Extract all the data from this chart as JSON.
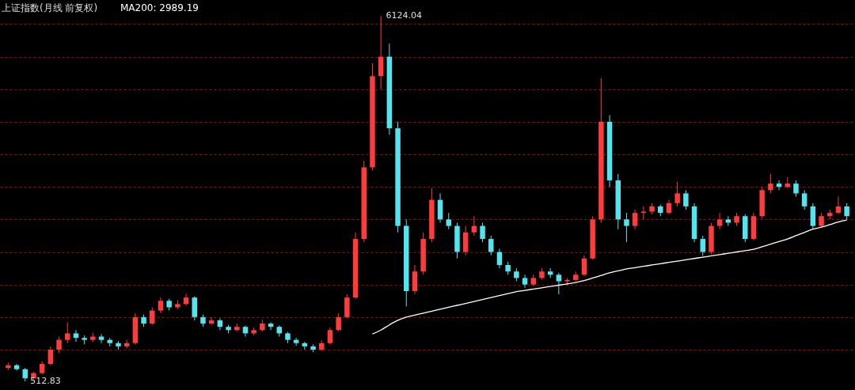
{
  "chart_data": {
    "type": "candlestick",
    "title": "上证指数(月线 前复权)",
    "categories": [
      null,
      null,
      null,
      null,
      null,
      null,
      null,
      null,
      null,
      null,
      null,
      null,
      null,
      null,
      null,
      null,
      null,
      null,
      null,
      null,
      null,
      null,
      null,
      null,
      null,
      null,
      null,
      null,
      null,
      null,
      null,
      null,
      null,
      null,
      null,
      null,
      null,
      null,
      null,
      null,
      null,
      null,
      null,
      null,
      null,
      null,
      null,
      null,
      null,
      null,
      null,
      null,
      null,
      null,
      null,
      null,
      null,
      null,
      null,
      null,
      null,
      null,
      null,
      null,
      null,
      null,
      null,
      null,
      null,
      null,
      null,
      null,
      null,
      null,
      null,
      null,
      null,
      null,
      null,
      null,
      null,
      null,
      null,
      null,
      null,
      null,
      null,
      null,
      null,
      null,
      null,
      null,
      null,
      null,
      null,
      null,
      null,
      null,
      null,
      null
    ],
    "ohlc": [
      [
        720,
        800,
        690,
        760
      ],
      [
        760,
        780,
        680,
        700
      ],
      [
        700,
        720,
        512.83,
        560
      ],
      [
        560,
        660,
        540,
        640
      ],
      [
        640,
        820,
        620,
        780
      ],
      [
        780,
        1050,
        760,
        1000
      ],
      [
        1000,
        1200,
        950,
        1150
      ],
      [
        1150,
        1420,
        1100,
        1250
      ],
      [
        1250,
        1300,
        1120,
        1180
      ],
      [
        1180,
        1220,
        1080,
        1150
      ],
      [
        1150,
        1260,
        1120,
        1200
      ],
      [
        1200,
        1240,
        1100,
        1150
      ],
      [
        1150,
        1180,
        1050,
        1100
      ],
      [
        1100,
        1130,
        1000,
        1050
      ],
      [
        1050,
        1150,
        1020,
        1100
      ],
      [
        1100,
        1560,
        1080,
        1500
      ],
      [
        1500,
        1540,
        1350,
        1400
      ],
      [
        1400,
        1650,
        1380,
        1600
      ],
      [
        1600,
        1800,
        1560,
        1750
      ],
      [
        1750,
        1780,
        1600,
        1650
      ],
      [
        1650,
        1760,
        1620,
        1700
      ],
      [
        1700,
        1860,
        1680,
        1800
      ],
      [
        1800,
        1820,
        1450,
        1500
      ],
      [
        1500,
        1540,
        1350,
        1400
      ],
      [
        1400,
        1500,
        1380,
        1450
      ],
      [
        1450,
        1480,
        1300,
        1350
      ],
      [
        1350,
        1380,
        1250,
        1300
      ],
      [
        1300,
        1400,
        1280,
        1350
      ],
      [
        1350,
        1370,
        1200,
        1250
      ],
      [
        1250,
        1340,
        1220,
        1300
      ],
      [
        1300,
        1460,
        1280,
        1400
      ],
      [
        1400,
        1420,
        1300,
        1350
      ],
      [
        1350,
        1370,
        1200,
        1250
      ],
      [
        1250,
        1270,
        1100,
        1150
      ],
      [
        1150,
        1180,
        1060,
        1100
      ],
      [
        1100,
        1120,
        1000,
        1050
      ],
      [
        1050,
        1080,
        960,
        1000
      ],
      [
        1000,
        1140,
        980,
        1100
      ],
      [
        1100,
        1340,
        1080,
        1300
      ],
      [
        1300,
        1560,
        1280,
        1500
      ],
      [
        1500,
        1850,
        1480,
        1800
      ],
      [
        1800,
        2800,
        1780,
        2700
      ],
      [
        2700,
        3900,
        2650,
        3800
      ],
      [
        3800,
        5400,
        3750,
        5200
      ],
      [
        5200,
        6124.04,
        5000,
        5500
      ],
      [
        5500,
        5700,
        4300,
        4400
      ],
      [
        4400,
        4500,
        2800,
        2900
      ],
      [
        2900,
        3000,
        1664,
        1900
      ],
      [
        1900,
        2300,
        1850,
        2200
      ],
      [
        2200,
        2800,
        2150,
        2700
      ],
      [
        2700,
        3480,
        2650,
        3300
      ],
      [
        3300,
        3400,
        2950,
        3000
      ],
      [
        3000,
        3100,
        2850,
        2900
      ],
      [
        2900,
        2950,
        2400,
        2500
      ],
      [
        2500,
        2900,
        2450,
        2800
      ],
      [
        2800,
        3050,
        2750,
        2900
      ],
      [
        2900,
        2950,
        2650,
        2700
      ],
      [
        2700,
        2750,
        2450,
        2500
      ],
      [
        2500,
        2550,
        2250,
        2300
      ],
      [
        2300,
        2350,
        2150,
        2200
      ],
      [
        2200,
        2250,
        2050,
        2100
      ],
      [
        2100,
        2150,
        1950,
        2000
      ],
      [
        2000,
        2150,
        1980,
        2100
      ],
      [
        2100,
        2250,
        2080,
        2200
      ],
      [
        2200,
        2250,
        2100,
        2150
      ],
      [
        2150,
        2180,
        1850,
        2050
      ],
      [
        2050,
        2100,
        1990,
        2070
      ],
      [
        2070,
        2200,
        2050,
        2150
      ],
      [
        2150,
        2450,
        2130,
        2400
      ],
      [
        2400,
        3050,
        2380,
        3000
      ],
      [
        3000,
        5166,
        2950,
        4500
      ],
      [
        4500,
        4600,
        3500,
        3600
      ],
      [
        3600,
        3700,
        2850,
        3000
      ],
      [
        3000,
        3100,
        2650,
        2900
      ],
      [
        2900,
        3150,
        2850,
        3100
      ],
      [
        3100,
        3200,
        3000,
        3120
      ],
      [
        3120,
        3250,
        3080,
        3200
      ],
      [
        3200,
        3230,
        3050,
        3100
      ],
      [
        3100,
        3300,
        3080,
        3250
      ],
      [
        3250,
        3580,
        3200,
        3400
      ],
      [
        3400,
        3450,
        3150,
        3200
      ],
      [
        3200,
        3250,
        2650,
        2700
      ],
      [
        2700,
        2750,
        2440,
        2500
      ],
      [
        2500,
        2950,
        2470,
        2900
      ],
      [
        2900,
        3100,
        2850,
        3000
      ],
      [
        3000,
        3050,
        2900,
        2950
      ],
      [
        2950,
        3100,
        2900,
        3050
      ],
      [
        3050,
        3080,
        2650,
        2700
      ],
      [
        2700,
        3100,
        2680,
        3050
      ],
      [
        3050,
        3500,
        3020,
        3450
      ],
      [
        3450,
        3700,
        3400,
        3550
      ],
      [
        3550,
        3600,
        3450,
        3500
      ],
      [
        3500,
        3650,
        3480,
        3550
      ],
      [
        3550,
        3600,
        3350,
        3400
      ],
      [
        3400,
        3450,
        3150,
        3200
      ],
      [
        3200,
        3250,
        2850,
        2900
      ],
      [
        2900,
        3100,
        2880,
        3050
      ],
      [
        3050,
        3150,
        3000,
        3100
      ],
      [
        3100,
        3350,
        3080,
        3200
      ],
      [
        3200,
        3250,
        3000,
        3050
      ]
    ],
    "colors": [
      "#ff3b3b",
      "#52e5f0",
      "#52e5f0",
      "#ff3b3b",
      "#ff3b3b",
      "#ff3b3b",
      "#ff3b3b",
      "#ff3b3b",
      "#52e5f0",
      "#52e5f0",
      "#ff3b3b",
      "#52e5f0",
      "#52e5f0",
      "#52e5f0",
      "#ff3b3b",
      "#ff3b3b",
      "#52e5f0",
      "#ff3b3b",
      "#ff3b3b",
      "#52e5f0",
      "#ff3b3b",
      "#ff3b3b",
      "#52e5f0",
      "#52e5f0",
      "#ff3b3b",
      "#52e5f0",
      "#52e5f0",
      "#ff3b3b",
      "#52e5f0",
      "#ff3b3b",
      "#ff3b3b",
      "#52e5f0",
      "#52e5f0",
      "#52e5f0",
      "#52e5f0",
      "#52e5f0",
      "#52e5f0",
      "#ff3b3b",
      "#ff3b3b",
      "#ff3b3b",
      "#ff3b3b",
      "#ff3b3b",
      "#ff3b3b",
      "#ff3b3b",
      "#ff3b3b",
      "#52e5f0",
      "#52e5f0",
      "#52e5f0",
      "#ff3b3b",
      "#ff3b3b",
      "#ff3b3b",
      "#52e5f0",
      "#52e5f0",
      "#52e5f0",
      "#ff3b3b",
      "#ff3b3b",
      "#52e5f0",
      "#52e5f0",
      "#52e5f0",
      "#52e5f0",
      "#52e5f0",
      "#52e5f0",
      "#ff3b3b",
      "#ff3b3b",
      "#52e5f0",
      "#52e5f0",
      "#ff3b3b",
      "#ff3b3b",
      "#ff3b3b",
      "#ff3b3b",
      "#ff3b3b",
      "#52e5f0",
      "#52e5f0",
      "#52e5f0",
      "#ff3b3b",
      "#ff3b3b",
      "#ff3b3b",
      "#52e5f0",
      "#ff3b3b",
      "#ff3b3b",
      "#52e5f0",
      "#52e5f0",
      "#52e5f0",
      "#ff3b3b",
      "#ff3b3b",
      "#52e5f0",
      "#ff3b3b",
      "#52e5f0",
      "#ff3b3b",
      "#ff3b3b",
      "#ff3b3b",
      "#52e5f0",
      "#ff3b3b",
      "#52e5f0",
      "#52e5f0",
      "#52e5f0",
      "#ff3b3b",
      "#ff3b3b",
      "#ff3b3b",
      "#52e5f0"
    ],
    "series": [
      {
        "type": "line",
        "name": "MA200: 2989.19",
        "color": "#ffffff",
        "values": [
          null,
          null,
          null,
          null,
          null,
          null,
          null,
          null,
          null,
          null,
          null,
          null,
          null,
          null,
          null,
          null,
          null,
          null,
          null,
          null,
          null,
          null,
          null,
          null,
          null,
          null,
          null,
          null,
          null,
          null,
          null,
          null,
          null,
          null,
          null,
          null,
          null,
          null,
          null,
          null,
          null,
          null,
          null,
          1240,
          1300,
          1380,
          1450,
          1500,
          1530,
          1560,
          1590,
          1620,
          1650,
          1680,
          1710,
          1740,
          1770,
          1800,
          1830,
          1860,
          1890,
          1910,
          1930,
          1950,
          1970,
          1990,
          2010,
          2030,
          2060,
          2100,
          2140,
          2180,
          2210,
          2240,
          2260,
          2280,
          2300,
          2320,
          2340,
          2360,
          2380,
          2400,
          2420,
          2440,
          2460,
          2480,
          2500,
          2520,
          2540,
          2580,
          2620,
          2660,
          2700,
          2750,
          2800,
          2850,
          2880,
          2920,
          2960,
          2990
        ]
      }
    ],
    "ylim": [
      380,
      6370
    ],
    "yticks": [
      {
        "value": 1000,
        "label": null
      },
      {
        "value": 1500,
        "label": null
      },
      {
        "value": 2000,
        "label": null
      },
      {
        "value": 2500,
        "label": null
      },
      {
        "value": 3000,
        "label": null
      },
      {
        "value": 3500,
        "label": null
      },
      {
        "value": 4000,
        "label": null
      },
      {
        "value": 4500,
        "label": null
      },
      {
        "value": 5000,
        "label": null
      },
      {
        "value": 5500,
        "label": null
      },
      {
        "value": 6000,
        "label": null
      }
    ],
    "grid": "y",
    "legend": "top left",
    "annotations": [
      "6124.04",
      "512.83"
    ]
  }
}
